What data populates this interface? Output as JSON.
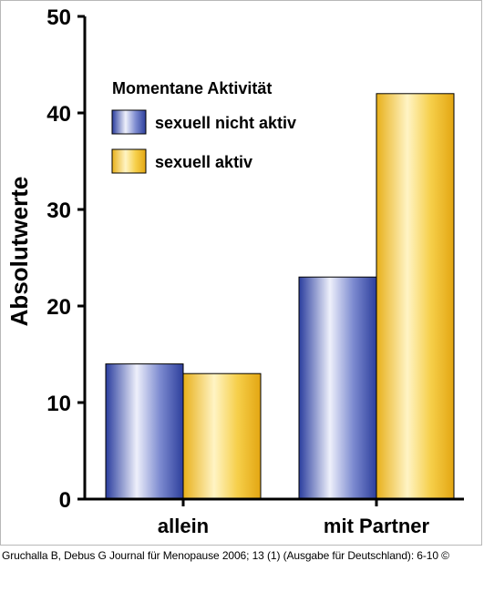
{
  "chart_data": {
    "type": "bar",
    "ylabel": "Absolutwerte",
    "xlabel": "",
    "categories": [
      "allein",
      "mit Partner"
    ],
    "ylim": [
      0,
      50
    ],
    "yticks": [
      0,
      10,
      20,
      30,
      40,
      50
    ],
    "legend": {
      "title": "Momentane Aktivität",
      "placement": "top-left"
    },
    "series": [
      {
        "name": "sexuell nicht aktiv",
        "values": [
          14,
          23
        ],
        "color": "#4a5fb5"
      },
      {
        "name": "sexuell aktiv",
        "values": [
          13,
          42
        ],
        "color": "#f2c232"
      }
    ],
    "grid": false
  },
  "caption": "Gruchalla B, Debus G Journal für Menopause 2006; 13 (1) (Ausgabe für Deutschland): 6-10 ©"
}
